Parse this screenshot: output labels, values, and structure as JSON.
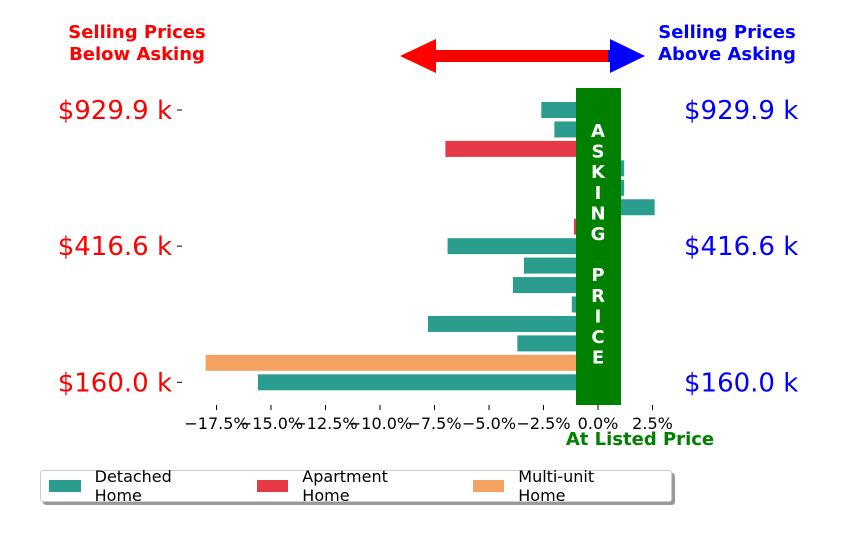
{
  "header": {
    "left_label_line1": "Selling Prices",
    "left_label_line2": "Below Asking",
    "right_label_line1": "Selling Prices",
    "right_label_line2": "Above Asking"
  },
  "colors": {
    "below": "#ff0000",
    "above": "#0000ff",
    "asking": "#008000",
    "detached": "#2a9d8f",
    "apartment": "#e63946",
    "multiunit": "#f4a261"
  },
  "asking_band": {
    "letters": [
      "A",
      "S",
      "K",
      "I",
      "N",
      "G",
      "",
      "P",
      "R",
      "I",
      "C",
      "E"
    ]
  },
  "bottom_label": "At Listed Price",
  "price_labels": [
    {
      "text": "$929.9 k",
      "row": 0
    },
    {
      "text": "$416.6 k",
      "row": 7
    },
    {
      "text": "$160.0 k",
      "row": 14
    }
  ],
  "legend": [
    {
      "label": "Detached Home",
      "color_key": "detached"
    },
    {
      "label": "Apartment Home",
      "color_key": "apartment"
    },
    {
      "label": "Multi-unit Home",
      "color_key": "multiunit"
    }
  ],
  "chart_data": {
    "type": "bar",
    "orientation": "horizontal",
    "xlabel": "At Listed Price",
    "xlim": [
      -18.5,
      3.2
    ],
    "xticks": [
      -17.5,
      -15.0,
      -12.5,
      -10.0,
      -7.5,
      -5.0,
      -2.5,
      0.0,
      2.5
    ],
    "xtick_labels": [
      "−17.5%",
      "−15.0%",
      "−12.5%",
      "−10.0%",
      "−7.5%",
      "−5.0%",
      "−2.5%",
      "0.0%",
      "2.5%"
    ],
    "rows": [
      {
        "value": -2.6,
        "type": "detached"
      },
      {
        "value": -2.0,
        "type": "detached"
      },
      {
        "value": -7.0,
        "type": "apartment"
      },
      {
        "value": 1.2,
        "type": "detached"
      },
      {
        "value": 1.2,
        "type": "detached"
      },
      {
        "value": 2.6,
        "type": "detached"
      },
      {
        "value": -1.1,
        "type": "apartment"
      },
      {
        "value": -6.9,
        "type": "detached"
      },
      {
        "value": -3.4,
        "type": "detached"
      },
      {
        "value": -3.9,
        "type": "detached"
      },
      {
        "value": -1.2,
        "type": "detached"
      },
      {
        "value": -7.8,
        "type": "detached"
      },
      {
        "value": -3.7,
        "type": "detached"
      },
      {
        "value": -18.0,
        "type": "multiunit"
      },
      {
        "value": -15.6,
        "type": "detached"
      }
    ]
  }
}
